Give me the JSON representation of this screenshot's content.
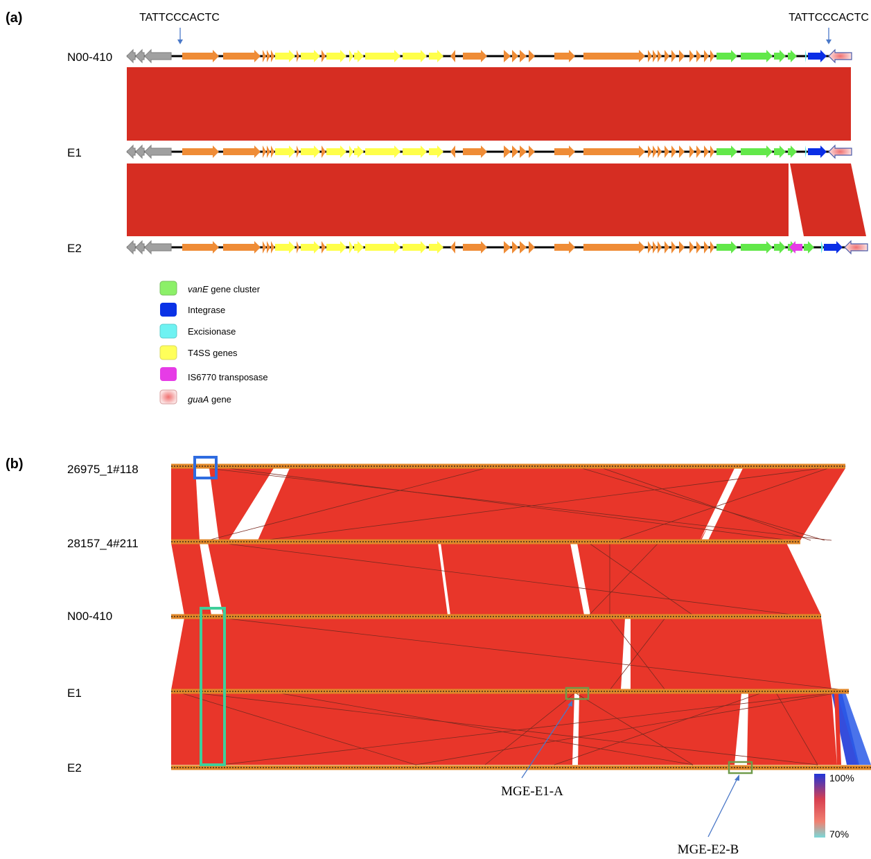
{
  "panel_a": {
    "label": "(a)",
    "motif_left": "TATTCCCACTC",
    "motif_right": "TATTCCCACTC",
    "tracks": [
      {
        "name": "N00-410"
      },
      {
        "name": "E1"
      },
      {
        "name": "E2"
      }
    ],
    "legend": [
      {
        "label_italic": "vanE",
        "label": " gene cluster",
        "color": "#8cf068",
        "icon": "legend-swatch"
      },
      {
        "label_italic": "",
        "label": "Integrase",
        "color": "#0a32e6",
        "icon": "legend-swatch"
      },
      {
        "label_italic": "",
        "label": "Excisionase",
        "color": "#6ef2f2",
        "icon": "legend-swatch"
      },
      {
        "label_italic": "",
        "label": "T4SS genes",
        "color": "#ffff5a",
        "icon": "legend-swatch"
      },
      {
        "label_italic": "",
        "label": "IS6770 transposase",
        "label_italic_part": "6770",
        "color": "#e63ce6",
        "icon": "legend-swatch"
      },
      {
        "label_italic": "guaA",
        "label": " gene",
        "color": "#f2b4b4",
        "icon": "legend-swatch"
      }
    ],
    "colors": {
      "grey": "#a0a0a0",
      "orange": "#ef8c36",
      "yellow": "#ffff4a",
      "green": "#62e84a",
      "blue": "#0a2ee6",
      "magenta": "#e63ce6",
      "cyan": "#5ee8e8",
      "pink": "#f5b8b8",
      "match": "#d62d22"
    }
  },
  "panel_b": {
    "label": "(b)",
    "tracks": [
      {
        "name": "26975_1#118"
      },
      {
        "name": "28157_4#211"
      },
      {
        "name": "N00-410"
      },
      {
        "name": "E1"
      },
      {
        "name": "E2"
      }
    ],
    "annotations": [
      {
        "label": "MGE-E1-A"
      },
      {
        "label": "MGE-E2-B"
      }
    ],
    "scale": {
      "max_label": "100%",
      "min_label": "70%"
    },
    "colors": {
      "match": "#e8362a",
      "blue_box": "#2f6ce0",
      "teal_box": "#3fcf9a",
      "olive_box": "#6f9a4a",
      "arrow": "#4a78c8"
    }
  }
}
